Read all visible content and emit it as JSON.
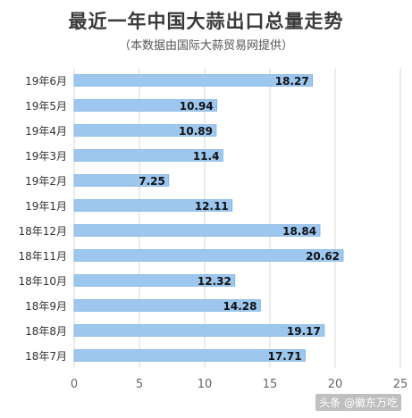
{
  "title": "最近一年中国大蒜出口总量走势",
  "subtitle": "（本数据由国际大蒜贸易网提供）",
  "watermark": "头条 @徽东万吃",
  "colors": {
    "bar": "#9dc7ef",
    "bar_edge": "#6aa5dd",
    "grid": "#d9d9d9",
    "label": "#333333"
  },
  "chart_data": {
    "type": "bar",
    "orientation": "horizontal",
    "title": "最近一年中国大蒜出口总量走势",
    "subtitle": "（本数据由国际大蒜贸易网提供）",
    "categories": [
      "19年6月",
      "19年5月",
      "19年4月",
      "19年3月",
      "19年2月",
      "19年1月",
      "18年12月",
      "18年11月",
      "18年10月",
      "18年9月",
      "18年8月",
      "18年7月"
    ],
    "values": [
      18.27,
      10.94,
      10.89,
      11.4,
      7.25,
      12.11,
      18.84,
      20.62,
      12.32,
      14.28,
      19.17,
      17.71
    ],
    "value_labels": [
      "18.27",
      "10.94",
      "10.89",
      "11.4",
      "7.25",
      "12.11",
      "18.84",
      "20.62",
      "12.32",
      "14.28",
      "19.17",
      "17.71"
    ],
    "xlim": [
      0,
      25
    ],
    "xticks": [
      "0",
      "5",
      "10",
      "15",
      "20",
      "25"
    ],
    "grid": true
  }
}
